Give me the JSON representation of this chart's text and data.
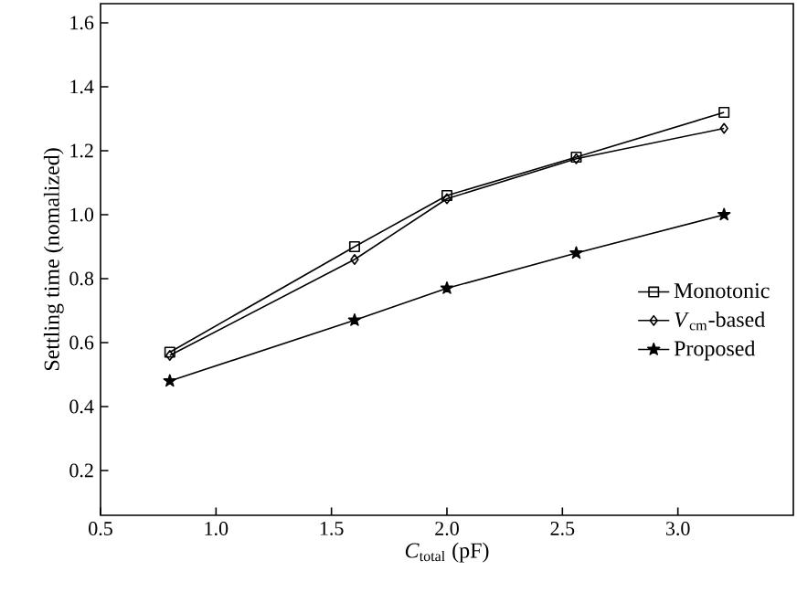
{
  "chart_data": {
    "type": "line",
    "xlabel": "*C*$_{total}$ (pF)",
    "ylabel": "Settling time (nomalized)",
    "x": [
      0.8,
      1.6,
      2.0,
      2.56,
      3.2
    ],
    "series": [
      {
        "name": "Monotonic",
        "color": "#000000",
        "marker": "square",
        "values": [
          0.57,
          0.9,
          1.06,
          1.18,
          1.32
        ]
      },
      {
        "name": "*V*$_{cm}$-based",
        "color": "#000000",
        "marker": "diamond",
        "values": [
          0.56,
          0.86,
          1.05,
          1.175,
          1.27
        ]
      },
      {
        "name": "Proposed",
        "color": "#000000",
        "marker": "star",
        "values": [
          0.48,
          0.67,
          0.77,
          0.88,
          1.0
        ]
      }
    ],
    "xlim": [
      0.5,
      3.5
    ],
    "ylim": [
      0.06,
      1.66
    ],
    "xticks": [
      0.5,
      {
        "value": 1,
        "label": "1.0"
      },
      1.5,
      {
        "value": 2,
        "label": "2.0"
      },
      2.5,
      {
        "value": 3,
        "label": "3.0"
      }
    ],
    "yticks": [
      0.2,
      0.4,
      0.6,
      0.8,
      {
        "value": 1,
        "label": "1.0"
      },
      1.2,
      1.4,
      1.6
    ],
    "grid": false,
    "legend": "right",
    "line_style": "solid"
  }
}
